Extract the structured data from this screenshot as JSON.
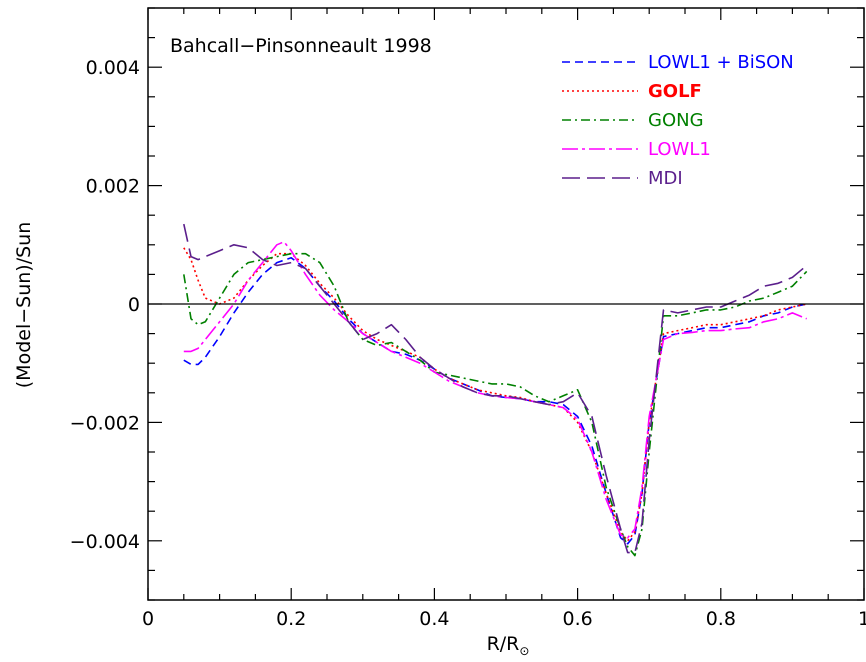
{
  "chart_data": {
    "type": "line",
    "annotation": "Bahcall−Pinsonneault 1998",
    "xlabel_main": "R/R",
    "xlabel_sub": "⊙",
    "ylabel": "(Model−Sun)/Sun",
    "xlim": [
      0,
      1
    ],
    "ylim": [
      -0.005,
      0.005
    ],
    "xticks": [
      0,
      0.2,
      0.4,
      0.6,
      0.8,
      1
    ],
    "xtick_labels": [
      "0",
      "0.2",
      "0.4",
      "0.6",
      "0.8",
      "1"
    ],
    "yticks": [
      -0.004,
      -0.002,
      0,
      0.002,
      0.004
    ],
    "ytick_labels": [
      "−0.004",
      "−0.002",
      "0",
      "0.002",
      "0.004"
    ],
    "zero_line": true,
    "legend_position": "top-right",
    "series": [
      {
        "name": "LOWL1 + BiSON",
        "color": "#0000ff",
        "dash": "dashed",
        "x": [
          0.05,
          0.06,
          0.07,
          0.08,
          0.1,
          0.12,
          0.14,
          0.16,
          0.18,
          0.2,
          0.22,
          0.24,
          0.26,
          0.28,
          0.3,
          0.32,
          0.34,
          0.36,
          0.38,
          0.4,
          0.42,
          0.44,
          0.46,
          0.48,
          0.5,
          0.52,
          0.54,
          0.56,
          0.58,
          0.6,
          0.62,
          0.64,
          0.66,
          0.67,
          0.68,
          0.69,
          0.7,
          0.72,
          0.74,
          0.76,
          0.78,
          0.8,
          0.82,
          0.84,
          0.86,
          0.88,
          0.9,
          0.92
        ],
        "y": [
          -0.00095,
          -0.00102,
          -0.00102,
          -0.0009,
          -0.00055,
          -0.00015,
          0.0002,
          0.0005,
          0.0007,
          0.00078,
          0.0006,
          0.0003,
          5e-05,
          -0.00025,
          -0.0005,
          -0.00065,
          -0.0008,
          -0.00085,
          -0.00095,
          -0.0011,
          -0.00125,
          -0.00135,
          -0.00145,
          -0.00155,
          -0.00158,
          -0.0016,
          -0.00165,
          -0.00165,
          -0.0017,
          -0.0019,
          -0.0024,
          -0.0032,
          -0.00395,
          -0.00405,
          -0.0039,
          -0.0032,
          -0.002,
          -0.00055,
          -0.0005,
          -0.00045,
          -0.0004,
          -0.0004,
          -0.00035,
          -0.0003,
          -0.0002,
          -0.00015,
          -5e-05,
          0.0
        ]
      },
      {
        "name": "GOLF",
        "color": "#ff0000",
        "dash": "dotted",
        "x": [
          0.05,
          0.06,
          0.07,
          0.08,
          0.1,
          0.12,
          0.14,
          0.16,
          0.18,
          0.2,
          0.22,
          0.24,
          0.26,
          0.28,
          0.3,
          0.32,
          0.34,
          0.36,
          0.38,
          0.4,
          0.42,
          0.44,
          0.46,
          0.48,
          0.5,
          0.52,
          0.54,
          0.56,
          0.58,
          0.6,
          0.62,
          0.64,
          0.66,
          0.67,
          0.68,
          0.69,
          0.7,
          0.72,
          0.74,
          0.76,
          0.78,
          0.8,
          0.82,
          0.84,
          0.86,
          0.88,
          0.9,
          0.92
        ],
        "y": [
          0.00095,
          0.00075,
          0.0004,
          0.0001,
          0.0,
          0.0001,
          0.0004,
          0.00065,
          0.00085,
          0.00085,
          0.00065,
          0.00035,
          0.0001,
          -0.0002,
          -0.00045,
          -0.0006,
          -0.0007,
          -0.0008,
          -0.0009,
          -0.0011,
          -0.00125,
          -0.00135,
          -0.00145,
          -0.0015,
          -0.00155,
          -0.00158,
          -0.00165,
          -0.0017,
          -0.00175,
          -0.002,
          -0.0025,
          -0.0032,
          -0.00385,
          -0.004,
          -0.00385,
          -0.0032,
          -0.002,
          -0.0005,
          -0.00045,
          -0.0004,
          -0.00035,
          -0.00035,
          -0.0003,
          -0.00025,
          -0.0002,
          -0.0001,
          -5e-05,
          0.0
        ]
      },
      {
        "name": "GONG",
        "color": "#008000",
        "dash": "dashdot",
        "x": [
          0.05,
          0.06,
          0.07,
          0.08,
          0.1,
          0.12,
          0.14,
          0.16,
          0.18,
          0.2,
          0.22,
          0.24,
          0.26,
          0.28,
          0.3,
          0.32,
          0.34,
          0.36,
          0.38,
          0.4,
          0.42,
          0.44,
          0.46,
          0.48,
          0.5,
          0.52,
          0.54,
          0.56,
          0.58,
          0.6,
          0.62,
          0.64,
          0.66,
          0.67,
          0.68,
          0.69,
          0.7,
          0.72,
          0.74,
          0.76,
          0.78,
          0.8,
          0.82,
          0.84,
          0.86,
          0.88,
          0.9,
          0.92
        ],
        "y": [
          0.0005,
          -0.00025,
          -0.00035,
          -0.0003,
          0.0001,
          0.0005,
          0.0007,
          0.00075,
          0.0008,
          0.00085,
          0.00085,
          0.0007,
          0.0003,
          -0.0003,
          -0.0006,
          -0.0007,
          -0.00065,
          -0.0008,
          -0.00095,
          -0.00115,
          -0.0012,
          -0.00125,
          -0.0013,
          -0.00135,
          -0.00135,
          -0.0014,
          -0.00155,
          -0.00165,
          -0.00155,
          -0.00145,
          -0.002,
          -0.0031,
          -0.0038,
          -0.0041,
          -0.00425,
          -0.0038,
          -0.0025,
          -0.0002,
          -0.0002,
          -0.00015,
          -0.0001,
          -0.0001,
          -5e-05,
          5e-05,
          0.0001,
          0.0002,
          0.0003,
          0.00055
        ]
      },
      {
        "name": "LOWL1",
        "color": "#ff00ff",
        "dash": "longdashdot",
        "x": [
          0.05,
          0.06,
          0.07,
          0.08,
          0.1,
          0.12,
          0.14,
          0.16,
          0.18,
          0.19,
          0.2,
          0.22,
          0.24,
          0.26,
          0.28,
          0.3,
          0.32,
          0.34,
          0.36,
          0.38,
          0.4,
          0.42,
          0.44,
          0.46,
          0.48,
          0.5,
          0.52,
          0.54,
          0.56,
          0.58,
          0.6,
          0.62,
          0.64,
          0.66,
          0.67,
          0.68,
          0.69,
          0.7,
          0.72,
          0.74,
          0.76,
          0.78,
          0.8,
          0.82,
          0.84,
          0.86,
          0.88,
          0.9,
          0.92
        ],
        "y": [
          -0.0008,
          -0.0008,
          -0.00075,
          -0.0006,
          -0.0003,
          0.0,
          0.0004,
          0.0007,
          0.001,
          0.00105,
          0.0009,
          0.0005,
          0.00015,
          -0.0001,
          -0.0003,
          -0.0005,
          -0.00065,
          -0.0008,
          -0.0009,
          -0.001,
          -0.00115,
          -0.0013,
          -0.0014,
          -0.0015,
          -0.00155,
          -0.00158,
          -0.0016,
          -0.00165,
          -0.0017,
          -0.00175,
          -0.00195,
          -0.0025,
          -0.0033,
          -0.0039,
          -0.00395,
          -0.0038,
          -0.0031,
          -0.0019,
          -0.0006,
          -0.0005,
          -0.00048,
          -0.00045,
          -0.00045,
          -0.00042,
          -0.0004,
          -0.0003,
          -0.00025,
          -0.00015,
          -0.00025
        ]
      },
      {
        "name": "MDI",
        "color": "#5b1f8c",
        "dash": "longdash",
        "x": [
          0.05,
          0.06,
          0.07,
          0.08,
          0.1,
          0.12,
          0.14,
          0.16,
          0.18,
          0.2,
          0.22,
          0.24,
          0.26,
          0.28,
          0.3,
          0.32,
          0.34,
          0.36,
          0.38,
          0.4,
          0.42,
          0.44,
          0.46,
          0.48,
          0.5,
          0.52,
          0.54,
          0.56,
          0.58,
          0.6,
          0.62,
          0.64,
          0.66,
          0.67,
          0.68,
          0.69,
          0.7,
          0.72,
          0.74,
          0.76,
          0.78,
          0.8,
          0.82,
          0.84,
          0.86,
          0.88,
          0.9,
          0.92
        ],
        "y": [
          0.00135,
          0.0008,
          0.00075,
          0.0008,
          0.0009,
          0.001,
          0.00095,
          0.00075,
          0.00065,
          0.0007,
          0.0006,
          0.0003,
          0.0,
          -0.0003,
          -0.0006,
          -0.0005,
          -0.00035,
          -0.0006,
          -0.0009,
          -0.0011,
          -0.00125,
          -0.0014,
          -0.0015,
          -0.00155,
          -0.00155,
          -0.0016,
          -0.00165,
          -0.0017,
          -0.00165,
          -0.0015,
          -0.0019,
          -0.0029,
          -0.0038,
          -0.0042,
          -0.0042,
          -0.0037,
          -0.0023,
          -0.0001,
          -0.00015,
          -0.0001,
          -5e-05,
          -5e-05,
          5e-05,
          0.00015,
          0.0003,
          0.00035,
          0.00045,
          0.00065
        ]
      }
    ]
  }
}
